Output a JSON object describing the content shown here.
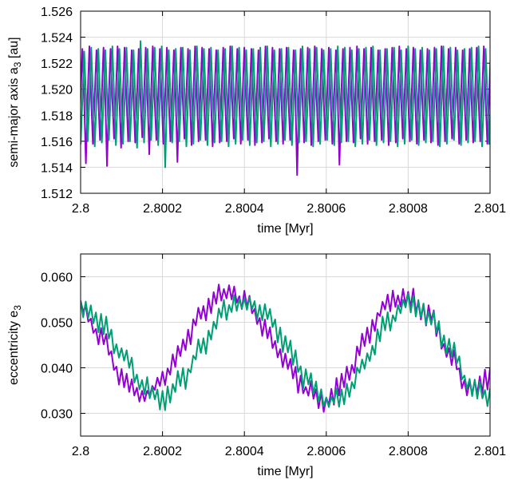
{
  "chart_data": [
    {
      "type": "line",
      "title": "",
      "xlabel": "time [Myr]",
      "ylabel": "semi-major axis a",
      "ylabel_sub": "3",
      "ylabel_suffix": " [au]",
      "xlim": [
        2.8,
        2.801
      ],
      "ylim": [
        1.512,
        1.526
      ],
      "x_ticks": [
        2.8,
        2.8002,
        2.8004,
        2.8006,
        2.8008,
        2.801
      ],
      "x_tick_labels": [
        "2.8",
        "2.8002",
        "2.8004",
        "2.8006",
        "2.8008",
        "2.801"
      ],
      "y_ticks": [
        1.512,
        1.514,
        1.516,
        1.518,
        1.52,
        1.522,
        1.524,
        1.526
      ],
      "y_tick_labels": [
        "1.512",
        "1.514",
        "1.516",
        "1.518",
        "1.520",
        "1.522",
        "1.524",
        "1.526"
      ],
      "grid": true,
      "oscillation_period_myr": 1.72e-05,
      "series": [
        {
          "color": "#9400d3",
          "mean": 1.5194,
          "amplitude": 0.0036,
          "phase_offset_myr": 0.0,
          "peaks": [
            1.5232,
            1.5231,
            1.5233,
            1.523,
            1.5232,
            1.5231,
            1.5233,
            1.5232,
            1.523,
            1.5231,
            1.5232,
            1.5233,
            1.5231,
            1.5232,
            1.523,
            1.5232,
            1.5231,
            1.5233,
            1.5232,
            1.5231,
            1.523,
            1.5232,
            1.5233,
            1.5231,
            1.5232,
            1.5231,
            1.523,
            1.5233,
            1.5232,
            1.5231,
            1.5232,
            1.523,
            1.5231,
            1.5232,
            1.5233,
            1.5231,
            1.5232,
            1.523,
            1.5231,
            1.5232,
            1.5233,
            1.5231,
            1.5232,
            1.523,
            1.5231,
            1.5232,
            1.5233,
            1.5231,
            1.5232,
            1.523,
            1.5231,
            1.5232,
            1.5233,
            1.5231,
            1.5232,
            1.523,
            1.5231,
            1.5232,
            1.5233
          ],
          "troughs": [
            1.516,
            1.5143,
            1.5158,
            1.5161,
            1.5141,
            1.5162,
            1.5155,
            1.516,
            1.5159,
            1.5163,
            1.515,
            1.5161,
            1.5158,
            1.516,
            1.5144,
            1.5162,
            1.5157,
            1.516,
            1.5161,
            1.5156,
            1.5159,
            1.516,
            1.5162,
            1.5158,
            1.5161,
            1.5157,
            1.5159,
            1.5162,
            1.516,
            1.5158,
            1.5161,
            1.5134,
            1.5159,
            1.5157,
            1.516,
            1.5161,
            1.5158,
            1.5142,
            1.516,
            1.5159,
            1.5162,
            1.5158,
            1.516,
            1.5161,
            1.5157,
            1.5159,
            1.5162,
            1.516,
            1.5158,
            1.5161,
            1.5159,
            1.5157,
            1.516,
            1.5162,
            1.5158,
            1.5161,
            1.5159,
            1.516,
            1.5158
          ]
        },
        {
          "color": "#009e73",
          "mean": 1.5194,
          "amplitude": 0.0038,
          "phase_offset_myr": 4.5e-06,
          "peaks": [
            1.523,
            1.5229,
            1.5232,
            1.5231,
            1.523,
            1.5233,
            1.5231,
            1.5232,
            1.523,
            1.5237,
            1.5231,
            1.5232,
            1.5233,
            1.523,
            1.5231,
            1.5232,
            1.523,
            1.5233,
            1.5231,
            1.5232,
            1.523,
            1.5231,
            1.5233,
            1.5232,
            1.523,
            1.5231,
            1.5232,
            1.5233,
            1.523,
            1.5231,
            1.5232,
            1.523,
            1.5233,
            1.5231,
            1.5232,
            1.523,
            1.5231,
            1.5233,
            1.5232,
            1.523,
            1.5231,
            1.5232,
            1.5233,
            1.523,
            1.5231,
            1.5232,
            1.523,
            1.5233,
            1.5231,
            1.5232,
            1.523,
            1.5231,
            1.5233,
            1.5232,
            1.523,
            1.5231,
            1.5232,
            1.5233,
            1.5231
          ],
          "troughs": [
            1.5158,
            1.516,
            1.5156,
            1.5159,
            1.5161,
            1.5157,
            1.5158,
            1.516,
            1.5155,
            1.5159,
            1.5161,
            1.5157,
            1.514,
            1.5159,
            1.516,
            1.5156,
            1.5158,
            1.5161,
            1.5157,
            1.5159,
            1.516,
            1.5156,
            1.5158,
            1.5161,
            1.5157,
            1.5159,
            1.516,
            1.5156,
            1.5158,
            1.5161,
            1.5157,
            1.5159,
            1.516,
            1.5156,
            1.5158,
            1.5161,
            1.5157,
            1.5159,
            1.516,
            1.5156,
            1.5158,
            1.5161,
            1.5157,
            1.5159,
            1.516,
            1.5156,
            1.5158,
            1.5161,
            1.5157,
            1.5159,
            1.516,
            1.5156,
            1.5158,
            1.5161,
            1.5157,
            1.5159,
            1.516,
            1.5156,
            1.5158
          ]
        }
      ]
    },
    {
      "type": "line",
      "title": "",
      "xlabel": "time [Myr]",
      "ylabel": "eccentricity e",
      "ylabel_sub": "3",
      "ylabel_suffix": "",
      "xlim": [
        2.8,
        2.801
      ],
      "ylim": [
        0.025,
        0.065
      ],
      "x_ticks": [
        2.8,
        2.8002,
        2.8004,
        2.8006,
        2.8008,
        2.801
      ],
      "x_tick_labels": [
        "2.8",
        "2.8002",
        "2.8004",
        "2.8006",
        "2.8008",
        "2.801"
      ],
      "y_ticks": [
        0.03,
        0.04,
        0.05,
        0.06
      ],
      "y_tick_labels": [
        "0.030",
        "0.040",
        "0.050",
        "0.060"
      ],
      "grid": true,
      "series": [
        {
          "color": "#9400d3",
          "x": [
            2.8,
            2.80005,
            2.8001,
            2.80015,
            2.8002,
            2.80025,
            2.8003,
            2.80035,
            2.8004,
            2.80045,
            2.8005,
            2.80055,
            2.8006,
            2.80065,
            2.8007,
            2.80075,
            2.8008,
            2.80085,
            2.8009,
            2.80095,
            2.801
          ],
          "y": [
            0.0535,
            0.0465,
            0.038,
            0.0335,
            0.037,
            0.045,
            0.0525,
            0.0565,
            0.0545,
            0.049,
            0.041,
            0.035,
            0.0325,
            0.038,
            0.0475,
            0.0545,
            0.0555,
            0.0515,
            0.043,
            0.035,
            0.0375
          ],
          "jitter": 0.0025
        },
        {
          "color": "#009e73",
          "x": [
            2.8,
            2.80005,
            2.8001,
            2.80015,
            2.8002,
            2.80025,
            2.8003,
            2.80035,
            2.8004,
            2.80045,
            2.8005,
            2.80055,
            2.8006,
            2.80065,
            2.8007,
            2.80075,
            2.8008,
            2.80085,
            2.8009,
            2.80095,
            2.801
          ],
          "y": [
            0.0535,
            0.05,
            0.043,
            0.0365,
            0.033,
            0.0375,
            0.045,
            0.0525,
            0.0545,
            0.0525,
            0.0455,
            0.0375,
            0.0325,
            0.0345,
            0.042,
            0.05,
            0.0545,
            0.0515,
            0.0445,
            0.036,
            0.0335
          ],
          "jitter": 0.0025
        }
      ]
    }
  ]
}
